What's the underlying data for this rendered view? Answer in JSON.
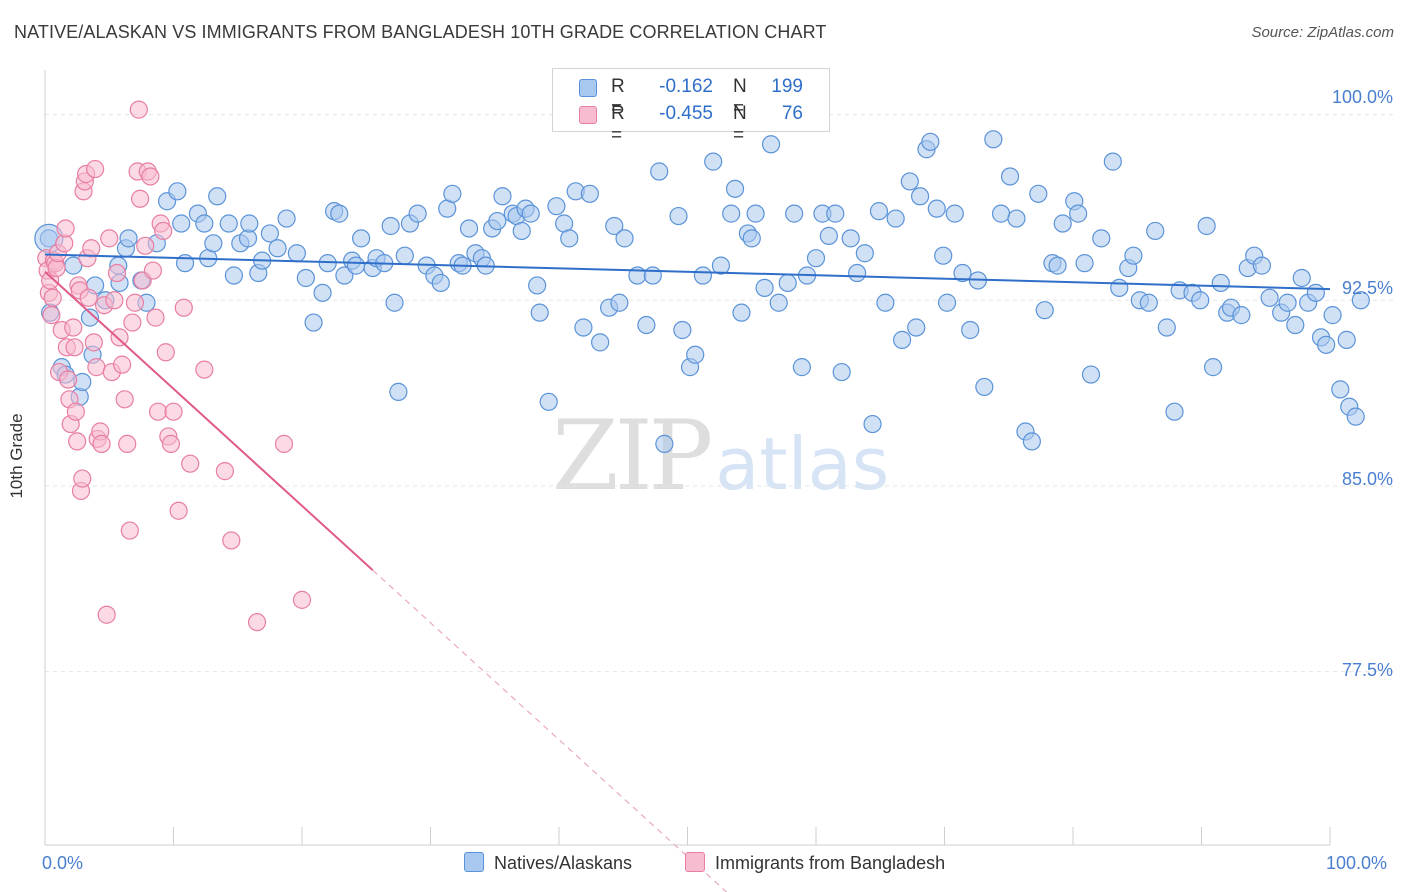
{
  "title": "NATIVE/ALASKAN VS IMMIGRANTS FROM BANGLADESH 10TH GRADE CORRELATION CHART",
  "source": "Source: ZipAtlas.com",
  "watermark": {
    "zip": "ZIP",
    "atlas": "atlas"
  },
  "legend_top": [
    {
      "r_label": "R =",
      "r_value": "-0.162",
      "n_label": "N =",
      "n_value": "199"
    },
    {
      "r_label": "R =",
      "r_value": "-0.455",
      "n_label": "N =",
      "n_value": "76"
    }
  ],
  "chart_data": {
    "type": "scatter",
    "title": "NATIVE/ALASKAN VS IMMIGRANTS FROM BANGLADESH 10TH GRADE CORRELATION CHART",
    "xlabel": "",
    "ylabel": "10th Grade",
    "xlim": [
      0,
      100
    ],
    "ylim": [
      70.5,
      101.8
    ],
    "x_tick_labels": [
      "0.0%",
      "100.0%"
    ],
    "y_ticks": [
      100.0,
      92.5,
      85.0,
      77.5
    ],
    "y_tick_labels": [
      "100.0%",
      "92.5%",
      "85.0%",
      "77.5%"
    ],
    "grid": true,
    "legend_position": "top-center",
    "colors": {
      "blue_fill": "#a9c8ef",
      "blue_stroke": "#5b93d8",
      "blue_line": "#2f6fc9",
      "pink_fill": "#f7bcd0",
      "pink_stroke": "#e87ea3",
      "pink_line": "#e05a8a",
      "tick_text": "#4a7fd0",
      "grid": "#e5e5e5"
    },
    "series": [
      {
        "name": "Natives/Alaskans",
        "r": -0.162,
        "n": 199,
        "trend": {
          "x0": 0,
          "y0": 94.35,
          "x1": 100,
          "y1": 92.95
        },
        "points": [
          [
            0.3,
            95.0
          ],
          [
            0.4,
            92.0
          ],
          [
            1.3,
            89.8
          ],
          [
            1.6,
            89.5
          ],
          [
            2.2,
            93.9
          ],
          [
            3.5,
            91.8
          ],
          [
            3.7,
            90.3
          ],
          [
            2.7,
            88.6
          ],
          [
            2.9,
            89.2
          ],
          [
            3.9,
            93.1
          ],
          [
            4.7,
            92.5
          ],
          [
            5.7,
            93.9
          ],
          [
            5.8,
            93.2
          ],
          [
            6.3,
            94.6
          ],
          [
            6.5,
            95.0
          ],
          [
            7.5,
            93.3
          ],
          [
            7.9,
            92.4
          ],
          [
            8.7,
            94.8
          ],
          [
            9.5,
            96.5
          ],
          [
            10.3,
            96.9
          ],
          [
            10.6,
            95.6
          ],
          [
            10.9,
            94.0
          ],
          [
            11.9,
            96.0
          ],
          [
            12.4,
            95.6
          ],
          [
            12.7,
            94.2
          ],
          [
            13.1,
            94.8
          ],
          [
            13.4,
            96.7
          ],
          [
            14.3,
            95.6
          ],
          [
            14.7,
            93.5
          ],
          [
            15.2,
            94.8
          ],
          [
            15.8,
            95.0
          ],
          [
            15.9,
            95.6
          ],
          [
            16.6,
            93.6
          ],
          [
            16.9,
            94.1
          ],
          [
            17.5,
            95.2
          ],
          [
            18.1,
            94.6
          ],
          [
            18.8,
            95.8
          ],
          [
            19.6,
            94.4
          ],
          [
            20.3,
            93.4
          ],
          [
            20.9,
            91.6
          ],
          [
            21.6,
            92.8
          ],
          [
            22.0,
            94.0
          ],
          [
            22.5,
            96.1
          ],
          [
            22.9,
            96.0
          ],
          [
            23.3,
            93.5
          ],
          [
            23.9,
            94.1
          ],
          [
            24.2,
            93.9
          ],
          [
            24.6,
            95.0
          ],
          [
            25.5,
            93.8
          ],
          [
            25.8,
            94.2
          ],
          [
            26.4,
            94.0
          ],
          [
            26.9,
            95.5
          ],
          [
            27.2,
            92.4
          ],
          [
            27.5,
            88.8
          ],
          [
            28.0,
            94.3
          ],
          [
            28.4,
            95.6
          ],
          [
            29.0,
            96.0
          ],
          [
            29.7,
            93.9
          ],
          [
            30.3,
            93.5
          ],
          [
            30.8,
            93.2
          ],
          [
            31.3,
            96.2
          ],
          [
            31.7,
            96.8
          ],
          [
            32.2,
            94.0
          ],
          [
            32.5,
            93.9
          ],
          [
            33.0,
            95.4
          ],
          [
            33.5,
            94.4
          ],
          [
            34.0,
            94.2
          ],
          [
            34.3,
            93.9
          ],
          [
            34.8,
            95.4
          ],
          [
            35.2,
            95.7
          ],
          [
            35.6,
            96.7
          ],
          [
            36.4,
            96.0
          ],
          [
            36.7,
            95.9
          ],
          [
            37.1,
            95.3
          ],
          [
            37.4,
            96.2
          ],
          [
            37.8,
            96.0
          ],
          [
            38.3,
            93.1
          ],
          [
            38.5,
            92.0
          ],
          [
            39.2,
            88.4
          ],
          [
            39.8,
            96.3
          ],
          [
            40.4,
            95.6
          ],
          [
            40.8,
            95.0
          ],
          [
            41.3,
            96.9
          ],
          [
            41.9,
            91.4
          ],
          [
            42.4,
            96.8
          ],
          [
            43.2,
            90.8
          ],
          [
            43.9,
            92.2
          ],
          [
            44.3,
            95.5
          ],
          [
            44.7,
            92.4
          ],
          [
            45.1,
            95.0
          ],
          [
            46.1,
            93.5
          ],
          [
            46.8,
            91.5
          ],
          [
            47.3,
            93.5
          ],
          [
            47.8,
            97.7
          ],
          [
            48.2,
            86.7
          ],
          [
            49.3,
            95.9
          ],
          [
            49.6,
            91.3
          ],
          [
            50.2,
            89.8
          ],
          [
            50.6,
            90.3
          ],
          [
            51.2,
            93.5
          ],
          [
            52.0,
            98.1
          ],
          [
            52.6,
            93.9
          ],
          [
            53.4,
            96.0
          ],
          [
            53.7,
            97.0
          ],
          [
            54.2,
            92.0
          ],
          [
            54.7,
            95.2
          ],
          [
            55.0,
            95.0
          ],
          [
            55.3,
            96.0
          ],
          [
            56.0,
            93.0
          ],
          [
            56.5,
            98.8
          ],
          [
            57.1,
            92.4
          ],
          [
            57.8,
            93.2
          ],
          [
            58.3,
            96.0
          ],
          [
            58.9,
            89.8
          ],
          [
            59.3,
            93.5
          ],
          [
            60.0,
            94.2
          ],
          [
            60.5,
            96.0
          ],
          [
            61.0,
            95.1
          ],
          [
            61.5,
            96.0
          ],
          [
            62.0,
            89.6
          ],
          [
            62.7,
            95.0
          ],
          [
            63.2,
            93.6
          ],
          [
            63.8,
            94.4
          ],
          [
            64.4,
            87.5
          ],
          [
            64.9,
            96.1
          ],
          [
            65.4,
            92.4
          ],
          [
            66.2,
            95.8
          ],
          [
            66.7,
            90.9
          ],
          [
            67.3,
            97.3
          ],
          [
            67.8,
            91.4
          ],
          [
            68.1,
            96.7
          ],
          [
            68.6,
            98.6
          ],
          [
            68.9,
            98.9
          ],
          [
            69.4,
            96.2
          ],
          [
            69.9,
            94.3
          ],
          [
            70.2,
            92.4
          ],
          [
            70.8,
            96.0
          ],
          [
            71.4,
            93.6
          ],
          [
            72.0,
            91.3
          ],
          [
            72.6,
            93.3
          ],
          [
            73.1,
            89.0
          ],
          [
            73.8,
            99.0
          ],
          [
            74.4,
            96.0
          ],
          [
            75.1,
            97.5
          ],
          [
            75.6,
            95.8
          ],
          [
            76.3,
            87.2
          ],
          [
            76.8,
            86.8
          ],
          [
            77.3,
            96.8
          ],
          [
            77.8,
            92.1
          ],
          [
            78.4,
            94.0
          ],
          [
            78.8,
            93.9
          ],
          [
            79.2,
            95.6
          ],
          [
            80.1,
            96.5
          ],
          [
            80.4,
            96.0
          ],
          [
            80.9,
            94.0
          ],
          [
            81.4,
            89.5
          ],
          [
            82.2,
            95.0
          ],
          [
            83.1,
            98.1
          ],
          [
            83.6,
            93.0
          ],
          [
            84.3,
            93.8
          ],
          [
            84.7,
            94.3
          ],
          [
            85.2,
            92.5
          ],
          [
            85.9,
            92.4
          ],
          [
            86.4,
            95.3
          ],
          [
            87.3,
            91.4
          ],
          [
            87.9,
            88.0
          ],
          [
            88.3,
            92.9
          ],
          [
            89.3,
            92.8
          ],
          [
            89.9,
            92.5
          ],
          [
            90.4,
            95.5
          ],
          [
            90.9,
            89.8
          ],
          [
            91.5,
            93.2
          ],
          [
            92.0,
            92.0
          ],
          [
            92.3,
            92.2
          ],
          [
            93.1,
            91.9
          ],
          [
            93.6,
            93.8
          ],
          [
            94.1,
            94.3
          ],
          [
            94.7,
            93.9
          ],
          [
            95.3,
            92.6
          ],
          [
            96.2,
            92.0
          ],
          [
            96.7,
            92.4
          ],
          [
            97.3,
            91.5
          ],
          [
            97.8,
            93.4
          ],
          [
            98.3,
            92.4
          ],
          [
            98.9,
            92.8
          ],
          [
            99.3,
            91.0
          ],
          [
            99.7,
            90.7
          ],
          [
            100.2,
            91.9
          ],
          [
            100.8,
            88.9
          ],
          [
            101.3,
            90.9
          ],
          [
            101.5,
            88.2
          ],
          [
            102.0,
            87.8
          ],
          [
            102.4,
            92.5
          ]
        ]
      },
      {
        "name": "Immigrants from Bangladesh",
        "r": -0.455,
        "n": 76,
        "trend": {
          "x0": 0,
          "y0": 93.65,
          "x1": 25.5,
          "y1": 81.6
        },
        "trend_dashed": {
          "x0": 25.5,
          "y0": 81.6,
          "x1": 56.0,
          "y1": 67.2
        },
        "points": [
          [
            0.1,
            94.2
          ],
          [
            0.2,
            93.7
          ],
          [
            0.3,
            92.8
          ],
          [
            0.4,
            93.3
          ],
          [
            0.5,
            91.9
          ],
          [
            0.6,
            92.6
          ],
          [
            0.7,
            94.1
          ],
          [
            0.8,
            94.0
          ],
          [
            0.9,
            93.8
          ],
          [
            1.0,
            94.4
          ],
          [
            1.1,
            89.6
          ],
          [
            1.3,
            91.3
          ],
          [
            1.5,
            94.8
          ],
          [
            1.6,
            95.4
          ],
          [
            1.7,
            90.6
          ],
          [
            1.8,
            89.3
          ],
          [
            1.9,
            88.5
          ],
          [
            2.0,
            87.5
          ],
          [
            2.2,
            91.4
          ],
          [
            2.3,
            90.6
          ],
          [
            2.4,
            88.0
          ],
          [
            2.5,
            86.8
          ],
          [
            2.6,
            93.1
          ],
          [
            2.7,
            92.9
          ],
          [
            2.8,
            84.8
          ],
          [
            2.9,
            85.3
          ],
          [
            3.0,
            96.9
          ],
          [
            3.1,
            97.3
          ],
          [
            3.2,
            97.6
          ],
          [
            3.3,
            94.2
          ],
          [
            3.4,
            92.6
          ],
          [
            3.6,
            94.6
          ],
          [
            3.8,
            90.8
          ],
          [
            3.9,
            97.8
          ],
          [
            4.0,
            89.8
          ],
          [
            4.1,
            86.9
          ],
          [
            4.3,
            87.2
          ],
          [
            4.4,
            86.7
          ],
          [
            4.6,
            92.3
          ],
          [
            4.8,
            79.8
          ],
          [
            5.0,
            95.0
          ],
          [
            5.2,
            89.6
          ],
          [
            5.4,
            92.5
          ],
          [
            5.6,
            93.6
          ],
          [
            5.8,
            91.0
          ],
          [
            6.0,
            89.9
          ],
          [
            6.2,
            88.5
          ],
          [
            6.4,
            86.7
          ],
          [
            6.6,
            83.2
          ],
          [
            6.8,
            91.6
          ],
          [
            7.0,
            92.4
          ],
          [
            7.2,
            97.7
          ],
          [
            7.4,
            96.6
          ],
          [
            7.6,
            93.3
          ],
          [
            7.8,
            94.7
          ],
          [
            8.0,
            97.7
          ],
          [
            8.2,
            97.5
          ],
          [
            8.4,
            93.7
          ],
          [
            8.6,
            91.8
          ],
          [
            8.8,
            88.0
          ],
          [
            9.0,
            95.6
          ],
          [
            9.2,
            95.3
          ],
          [
            9.4,
            90.4
          ],
          [
            9.6,
            87.0
          ],
          [
            9.8,
            86.7
          ],
          [
            10.0,
            88.0
          ],
          [
            10.4,
            84.0
          ],
          [
            10.8,
            92.2
          ],
          [
            11.3,
            85.9
          ],
          [
            12.4,
            89.7
          ],
          [
            14.0,
            85.6
          ],
          [
            14.5,
            82.8
          ],
          [
            16.5,
            79.5
          ],
          [
            18.6,
            86.7
          ],
          [
            20.0,
            80.4
          ],
          [
            7.3,
            100.2
          ]
        ]
      }
    ]
  },
  "legend_bottom": [
    "Natives/Alaskans",
    "Immigrants from Bangladesh"
  ]
}
